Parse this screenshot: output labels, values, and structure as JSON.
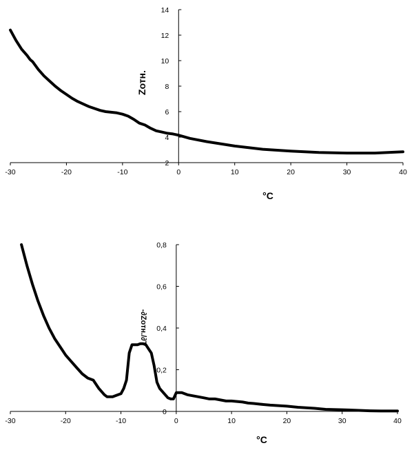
{
  "chart_data": [
    {
      "type": "line",
      "xlabel": "°C",
      "ylabel": "Zотн.",
      "xlim": [
        -30,
        40
      ],
      "ylim": [
        2,
        14
      ],
      "xticks": [
        "-30",
        "-20",
        "-10",
        "0",
        "10",
        "20",
        "30",
        "40"
      ],
      "yticks": [
        "2",
        "4",
        "6",
        "8",
        "10",
        "12",
        "14"
      ],
      "grid": false,
      "series": [
        {
          "x": [
            -30,
            -29,
            -28,
            -27,
            -26.5,
            -26,
            -25,
            -24,
            -23,
            -22,
            -21,
            -20,
            -19,
            -18,
            -17,
            -16,
            -15,
            -14,
            -13,
            -12,
            -11,
            -10,
            -9,
            -8,
            -7,
            -6,
            -5,
            -4,
            -3,
            -2,
            -1,
            0,
            2,
            5,
            10,
            15,
            20,
            25,
            30,
            35,
            40
          ],
          "values": [
            12.4,
            11.6,
            10.9,
            10.4,
            10.1,
            9.9,
            9.3,
            8.8,
            8.4,
            8.0,
            7.65,
            7.35,
            7.05,
            6.8,
            6.6,
            6.4,
            6.25,
            6.1,
            6.0,
            5.95,
            5.9,
            5.8,
            5.65,
            5.4,
            5.1,
            4.95,
            4.7,
            4.5,
            4.4,
            4.3,
            4.25,
            4.15,
            3.9,
            3.65,
            3.3,
            3.05,
            2.9,
            2.8,
            2.75,
            2.75,
            2.85
          ]
        }
      ]
    },
    {
      "type": "line",
      "xlabel": "°C",
      "ylabel": "-∂Zотн./∂T",
      "xlim": [
        -30,
        40
      ],
      "ylim": [
        0,
        0.8
      ],
      "xticks": [
        "-30",
        "-20",
        "-10",
        "0",
        "10",
        "20",
        "30",
        "40"
      ],
      "yticks": [
        "0",
        "0,2",
        "0,4",
        "0,6",
        "0,8"
      ],
      "grid": false,
      "series": [
        {
          "x": [
            -28,
            -27,
            -26,
            -25,
            -24,
            -23,
            -22,
            -21,
            -20,
            -19,
            -18,
            -17,
            -16,
            -15,
            -14,
            -13,
            -12.5,
            -12,
            -11.5,
            -11,
            -10,
            -9.5,
            -9,
            -8.5,
            -8,
            -7.5,
            -7,
            -6.5,
            -6,
            -5.5,
            -5,
            -4.5,
            -4,
            -3.5,
            -3,
            -2,
            -1.5,
            -1,
            -0.5,
            0,
            1,
            2,
            3,
            4,
            5,
            6,
            7,
            8,
            9,
            10,
            12,
            13,
            14,
            15,
            17,
            20,
            22,
            25,
            27,
            30,
            33,
            35,
            37,
            40
          ],
          "values": [
            0.8,
            0.7,
            0.61,
            0.53,
            0.46,
            0.4,
            0.35,
            0.31,
            0.27,
            0.24,
            0.21,
            0.18,
            0.16,
            0.15,
            0.11,
            0.08,
            0.07,
            0.07,
            0.07,
            0.075,
            0.085,
            0.11,
            0.15,
            0.28,
            0.32,
            0.32,
            0.32,
            0.325,
            0.325,
            0.32,
            0.3,
            0.28,
            0.22,
            0.14,
            0.11,
            0.08,
            0.065,
            0.06,
            0.06,
            0.09,
            0.09,
            0.08,
            0.075,
            0.07,
            0.065,
            0.06,
            0.06,
            0.055,
            0.05,
            0.05,
            0.045,
            0.04,
            0.038,
            0.035,
            0.03,
            0.025,
            0.02,
            0.015,
            0.01,
            0.008,
            0.005,
            0.003,
            0.002,
            0.002
          ]
        }
      ]
    }
  ]
}
